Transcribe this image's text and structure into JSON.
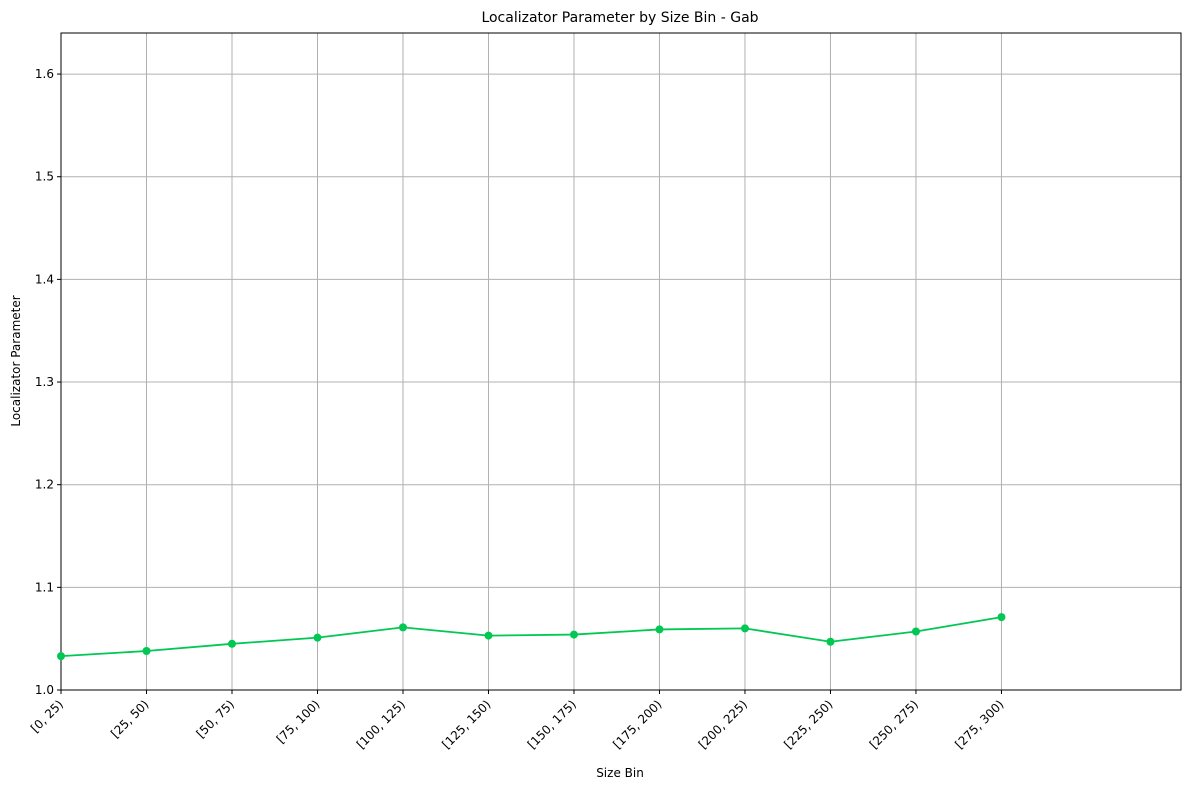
{
  "chart_data": {
    "type": "line",
    "title": "Localizator Parameter by Size Bin - Gab",
    "xlabel": "Size Bin",
    "ylabel": "Localizator Parameter",
    "categories": [
      "[0, 25)",
      "[25, 50)",
      "[50, 75)",
      "[75, 100)",
      "[100, 125)",
      "[125, 150)",
      "[150, 175)",
      "[175, 200)",
      "[200, 225)",
      "[225, 250)",
      "[250, 275)",
      "[275, 300)"
    ],
    "series": [
      {
        "values": [
          1.033,
          1.038,
          1.045,
          1.051,
          1.061,
          1.053,
          1.054,
          1.059,
          1.06,
          1.047,
          1.057,
          1.071
        ],
        "color": "#00c853",
        "marker": "circle"
      }
    ],
    "ylim": [
      1.0,
      1.64
    ],
    "yticks": [
      1.0,
      1.1,
      1.2,
      1.3,
      1.4,
      1.5,
      1.6
    ],
    "ytick_labels": [
      "1.0",
      "1.1",
      "1.2",
      "1.3",
      "1.4",
      "1.5",
      "1.6"
    ],
    "x_extent_bins": 13.1,
    "grid": true,
    "legend": "none"
  }
}
